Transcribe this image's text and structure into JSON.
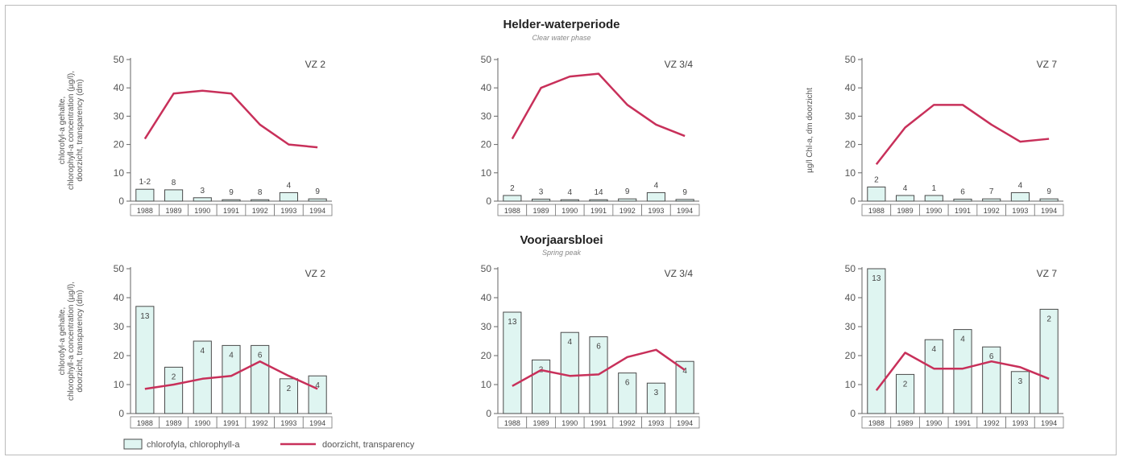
{
  "sections": [
    {
      "title": "Helder-waterperiode",
      "subtitle": "Clear water phase"
    },
    {
      "title": "Voorjaarsbloei",
      "subtitle": "Spring peak"
    }
  ],
  "legend": {
    "bar_label": "chlorofyla, chlorophyll-a",
    "line_label": "doorzicht, transparency"
  },
  "colors": {
    "bar_fill": "#dff5f1",
    "bar_stroke": "#4a4a4a",
    "line": "#c8305a",
    "axis": "#666666"
  },
  "chart_data": [
    {
      "type": "bar",
      "panel": "VZ 2",
      "ylabel": "chlorofyl-a gehalte, chlorophyll-a concentration (µg/l), doorzicht, transparency (dm)",
      "categories": [
        "1988",
        "1989",
        "1990",
        "1991",
        "1992",
        "1993",
        "1994"
      ],
      "ylim": [
        0,
        50
      ],
      "yticks": [
        0,
        10,
        20,
        30,
        40,
        50
      ],
      "series": [
        {
          "name": "chlorofyla, chlorophyll-a",
          "type": "bar",
          "values": [
            4.2,
            4,
            1.2,
            0.5,
            0.5,
            3,
            0.8
          ]
        },
        {
          "name": "doorzicht, transparency",
          "type": "line",
          "values": [
            22,
            38,
            39,
            38,
            27,
            20,
            19
          ]
        }
      ],
      "bar_labels": [
        "1-2",
        "8",
        "3",
        "9",
        "8",
        "4",
        "9"
      ]
    },
    {
      "type": "bar",
      "panel": "VZ 3/4",
      "ylabel": "",
      "categories": [
        "1988",
        "1989",
        "1990",
        "1991",
        "1992",
        "1993",
        "1994"
      ],
      "ylim": [
        0,
        50
      ],
      "yticks": [
        0,
        10,
        20,
        30,
        40,
        50
      ],
      "series": [
        {
          "name": "chlorofyla, chlorophyll-a",
          "type": "bar",
          "values": [
            2,
            0.7,
            0.5,
            0.5,
            0.8,
            3,
            0.6
          ]
        },
        {
          "name": "doorzicht, transparency",
          "type": "line",
          "values": [
            22,
            40,
            44,
            45,
            34,
            27,
            23
          ]
        }
      ],
      "bar_labels": [
        "2",
        "3",
        "4",
        "14",
        "9",
        "4",
        "9"
      ]
    },
    {
      "type": "bar",
      "panel": "VZ 7",
      "ylabel": "µg/l Chl-a, dm doorzicht",
      "categories": [
        "1988",
        "1989",
        "1990",
        "1991",
        "1992",
        "1993",
        "1994"
      ],
      "ylim": [
        0,
        50
      ],
      "yticks": [
        0,
        10,
        20,
        30,
        40,
        50
      ],
      "series": [
        {
          "name": "chlorofyla, chlorophyll-a",
          "type": "bar",
          "values": [
            5,
            2,
            2,
            0.7,
            0.8,
            3,
            0.8
          ]
        },
        {
          "name": "doorzicht, transparency",
          "type": "line",
          "values": [
            13,
            26,
            34,
            34,
            27,
            21,
            22
          ]
        }
      ],
      "bar_labels": [
        "2",
        "4",
        "1",
        "6",
        "7",
        "4",
        "9"
      ]
    },
    {
      "type": "bar",
      "panel": "VZ 2",
      "ylabel": "chlorofyl-a gehalte, chlorophyll-a concentration (µg/l), doorzicht, transparency (dm)",
      "categories": [
        "1988",
        "1989",
        "1990",
        "1991",
        "1992",
        "1993",
        "1994"
      ],
      "ylim": [
        0,
        50
      ],
      "yticks": [
        0,
        10,
        20,
        30,
        40,
        50
      ],
      "series": [
        {
          "name": "chlorofyla, chlorophyll-a",
          "type": "bar",
          "values": [
            37,
            16,
            25,
            23.5,
            23.5,
            12,
            13
          ]
        },
        {
          "name": "doorzicht, transparency",
          "type": "line",
          "values": [
            8.5,
            10,
            12,
            13,
            18,
            13,
            8.5
          ]
        }
      ],
      "bar_labels": [
        "13",
        "2",
        "4",
        "4",
        "6",
        "2",
        "4"
      ]
    },
    {
      "type": "bar",
      "panel": "VZ 3/4",
      "ylabel": "",
      "categories": [
        "1988",
        "1989",
        "1990",
        "1991",
        "1992",
        "1993",
        "1994"
      ],
      "ylim": [
        0,
        50
      ],
      "yticks": [
        0,
        10,
        20,
        30,
        40,
        50
      ],
      "series": [
        {
          "name": "chlorofyla, chlorophyll-a",
          "type": "bar",
          "values": [
            35,
            18.5,
            28,
            26.5,
            14,
            10.5,
            18
          ]
        },
        {
          "name": "doorzicht, transparency",
          "type": "line",
          "values": [
            9.5,
            15,
            13,
            13.5,
            19.5,
            22,
            15
          ]
        }
      ],
      "bar_labels": [
        "13",
        "2",
        "4",
        "6",
        "6",
        "3",
        "4"
      ]
    },
    {
      "type": "bar",
      "panel": "VZ 7",
      "ylabel": "",
      "categories": [
        "1988",
        "1989",
        "1990",
        "1991",
        "1992",
        "1993",
        "1994"
      ],
      "ylim": [
        0,
        50
      ],
      "yticks": [
        0,
        10,
        20,
        30,
        40,
        50
      ],
      "series": [
        {
          "name": "chlorofyla, chlorophyll-a",
          "type": "bar",
          "values": [
            50,
            13.5,
            25.5,
            29,
            23,
            14.5,
            36
          ]
        },
        {
          "name": "doorzicht, transparency",
          "type": "line",
          "values": [
            8,
            21,
            15.5,
            15.5,
            18,
            16,
            12
          ]
        }
      ],
      "bar_labels": [
        "13",
        "2",
        "4",
        "4",
        "6",
        "3",
        "2"
      ]
    }
  ]
}
